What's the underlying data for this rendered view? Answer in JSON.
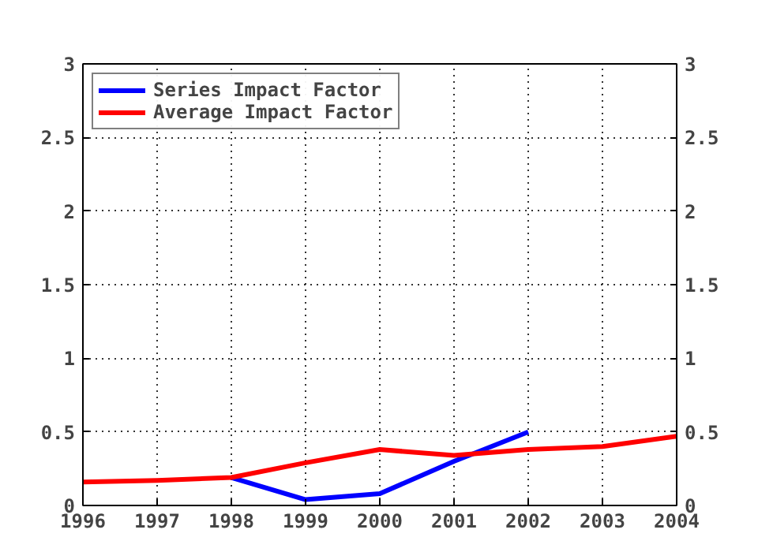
{
  "chart_data": {
    "type": "line",
    "x": [
      1996,
      1997,
      1998,
      1999,
      2000,
      2001,
      2002,
      2003,
      2004
    ],
    "series": [
      {
        "name": "Series Impact Factor",
        "color": "#0000ff",
        "values": [
          null,
          null,
          0.19,
          0.04,
          0.08,
          0.3,
          0.5,
          null,
          null
        ]
      },
      {
        "name": "Average Impact Factor",
        "color": "#ff0000",
        "values": [
          0.16,
          0.17,
          0.19,
          0.29,
          0.38,
          0.34,
          0.38,
          0.4,
          0.47
        ]
      }
    ],
    "xlim": [
      1996,
      2004
    ],
    "xticks": [
      1996,
      1997,
      1998,
      1999,
      2000,
      2001,
      2002,
      2003,
      2004
    ],
    "ylim": [
      0,
      3
    ],
    "yticks": [
      0,
      0.5,
      1,
      1.5,
      2,
      2.5,
      3
    ],
    "y2lim": [
      0,
      3
    ],
    "y2ticks": [
      0,
      0.5,
      1,
      1.5,
      2,
      2.5,
      3
    ],
    "grid": true,
    "legend": "top left",
    "marker": "none",
    "line_style": "solid"
  }
}
